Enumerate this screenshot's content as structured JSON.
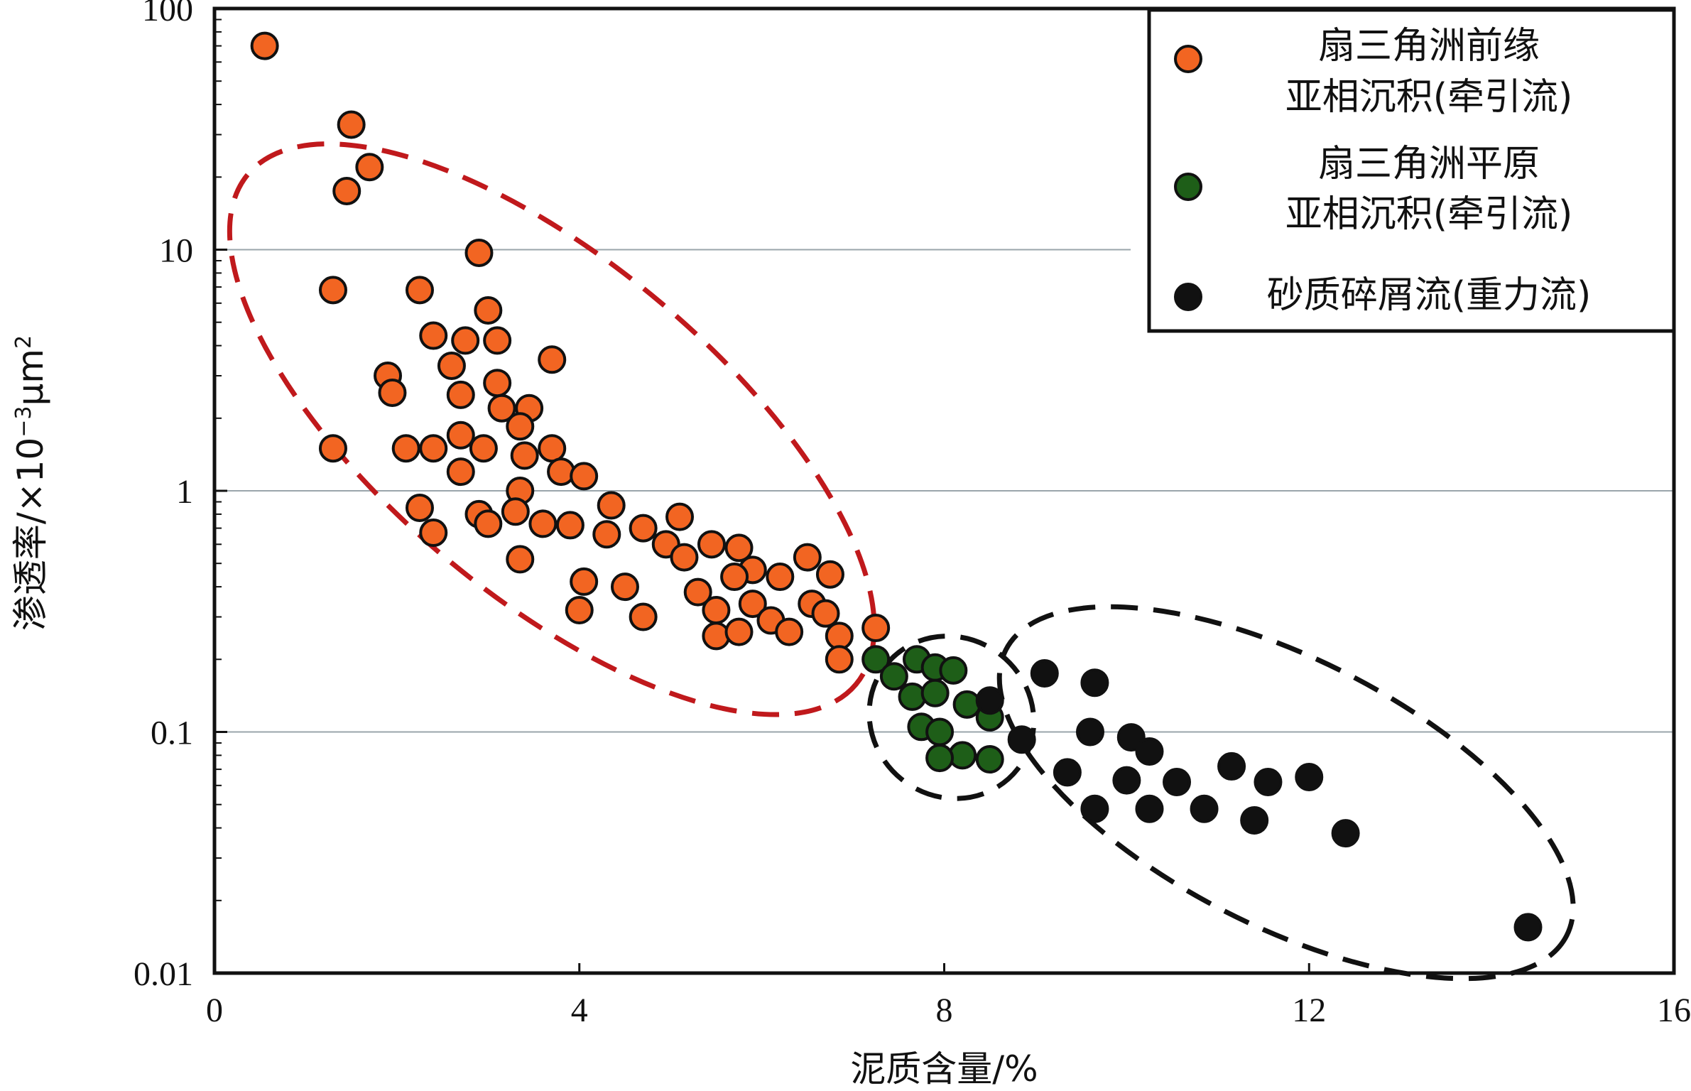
{
  "chart_data": {
    "type": "scatter",
    "xlabel": "泥质含量/%",
    "ylabel_main": "渗透率/×10",
    "ylabel_exp": "−3",
    "ylabel_unit": "μm",
    "ylabel_unit_exp": "2",
    "xlim": [
      0,
      16
    ],
    "ylim": [
      0.01,
      100
    ],
    "y_scale": "log",
    "x_ticks": [
      "0",
      "4",
      "8",
      "12",
      "16"
    ],
    "x_tick_values": [
      0,
      4,
      8,
      12,
      16
    ],
    "y_ticks": [
      "0.01",
      "0.1",
      "1",
      "10",
      "100"
    ],
    "y_tick_values": [
      0.01,
      0.1,
      1,
      10,
      100
    ],
    "gridlines": "horizontal at decades 0.1, 1, 10",
    "legend": {
      "position": "top-right",
      "entries": [
        {
          "line1": "扇三角洲前缘",
          "line2": "亚相沉积(牵引流)",
          "color": "#F26522"
        },
        {
          "line1": "扇三角洲平原",
          "line2": "亚相沉积(牵引流)",
          "color": "#1E5E18"
        },
        {
          "line1": "砂质碎屑流(重力流)",
          "line2": "",
          "color": "#111111"
        }
      ]
    },
    "series": [
      {
        "color": "#F26522",
        "points": [
          [
            0.55,
            70
          ],
          [
            1.5,
            33
          ],
          [
            1.7,
            22
          ],
          [
            1.45,
            17.5
          ],
          [
            2.9,
            9.7
          ],
          [
            1.3,
            6.8
          ],
          [
            2.25,
            6.8
          ],
          [
            3.0,
            5.6
          ],
          [
            2.75,
            4.2
          ],
          [
            3.1,
            4.2
          ],
          [
            2.4,
            4.4
          ],
          [
            3.7,
            3.5
          ],
          [
            2.6,
            3.3
          ],
          [
            1.9,
            3.0
          ],
          [
            3.1,
            2.8
          ],
          [
            2.7,
            2.5
          ],
          [
            1.95,
            2.55
          ],
          [
            3.45,
            2.2
          ],
          [
            3.15,
            2.2
          ],
          [
            3.35,
            1.85
          ],
          [
            2.7,
            1.7
          ],
          [
            1.3,
            1.5
          ],
          [
            2.1,
            1.5
          ],
          [
            2.4,
            1.5
          ],
          [
            2.95,
            1.5
          ],
          [
            3.7,
            1.5
          ],
          [
            3.4,
            1.4
          ],
          [
            2.7,
            1.2
          ],
          [
            3.8,
            1.2
          ],
          [
            4.05,
            1.15
          ],
          [
            3.35,
            1.0
          ],
          [
            4.35,
            0.87
          ],
          [
            2.25,
            0.85
          ],
          [
            2.9,
            0.8
          ],
          [
            3.3,
            0.82
          ],
          [
            5.1,
            0.78
          ],
          [
            3.0,
            0.73
          ],
          [
            3.6,
            0.73
          ],
          [
            3.9,
            0.72
          ],
          [
            4.7,
            0.7
          ],
          [
            2.4,
            0.67
          ],
          [
            4.3,
            0.66
          ],
          [
            4.95,
            0.6
          ],
          [
            5.45,
            0.6
          ],
          [
            5.75,
            0.58
          ],
          [
            3.35,
            0.52
          ],
          [
            5.15,
            0.53
          ],
          [
            6.5,
            0.53
          ],
          [
            5.9,
            0.47
          ],
          [
            5.7,
            0.44
          ],
          [
            6.2,
            0.44
          ],
          [
            6.75,
            0.45
          ],
          [
            4.05,
            0.42
          ],
          [
            4.5,
            0.4
          ],
          [
            5.3,
            0.38
          ],
          [
            6.55,
            0.34
          ],
          [
            5.9,
            0.34
          ],
          [
            6.7,
            0.31
          ],
          [
            5.5,
            0.32
          ],
          [
            4.0,
            0.32
          ],
          [
            4.7,
            0.3
          ],
          [
            6.1,
            0.29
          ],
          [
            6.85,
            0.25
          ],
          [
            5.5,
            0.25
          ],
          [
            5.75,
            0.26
          ],
          [
            6.3,
            0.26
          ],
          [
            7.25,
            0.27
          ],
          [
            6.85,
            0.2
          ]
        ]
      },
      {
        "color": "#1E5E18",
        "points": [
          [
            7.25,
            0.2
          ],
          [
            7.7,
            0.2
          ],
          [
            7.45,
            0.17
          ],
          [
            7.9,
            0.185
          ],
          [
            8.1,
            0.18
          ],
          [
            7.65,
            0.14
          ],
          [
            7.9,
            0.145
          ],
          [
            8.25,
            0.13
          ],
          [
            8.5,
            0.115
          ],
          [
            7.75,
            0.105
          ],
          [
            7.95,
            0.1
          ],
          [
            8.2,
            0.08
          ],
          [
            7.95,
            0.078
          ],
          [
            8.5,
            0.077
          ]
        ]
      },
      {
        "color": "#111111",
        "points": [
          [
            9.1,
            0.175
          ],
          [
            9.65,
            0.16
          ],
          [
            8.5,
            0.135
          ],
          [
            9.6,
            0.1
          ],
          [
            10.05,
            0.095
          ],
          [
            8.85,
            0.093
          ],
          [
            10.25,
            0.083
          ],
          [
            11.15,
            0.072
          ],
          [
            9.35,
            0.068
          ],
          [
            12.0,
            0.065
          ],
          [
            10.0,
            0.063
          ],
          [
            10.55,
            0.062
          ],
          [
            11.55,
            0.062
          ],
          [
            9.65,
            0.048
          ],
          [
            10.25,
            0.048
          ],
          [
            10.85,
            0.048
          ],
          [
            11.4,
            0.043
          ],
          [
            12.4,
            0.038
          ],
          [
            14.4,
            0.0155
          ]
        ]
      }
    ],
    "annotations": [
      {
        "shape": "dashed ellipse",
        "color": "#C0191C",
        "encloses": "fan-delta front cluster",
        "center": [
          3.7,
          1.8
        ],
        "rx": 4.35,
        "rot_deg": 40
      },
      {
        "shape": "dashed ellipse",
        "color": "#111111",
        "encloses": "fan-delta plain cluster",
        "center": [
          8.08,
          0.115
        ],
        "rx": 0.92,
        "rot_deg": 38
      },
      {
        "shape": "dashed ellipse",
        "color": "#111111",
        "encloses": "sandy debris flow cluster",
        "center": [
          11.75,
          0.056
        ],
        "rx": 3.45,
        "rot_deg": 27
      }
    ]
  }
}
